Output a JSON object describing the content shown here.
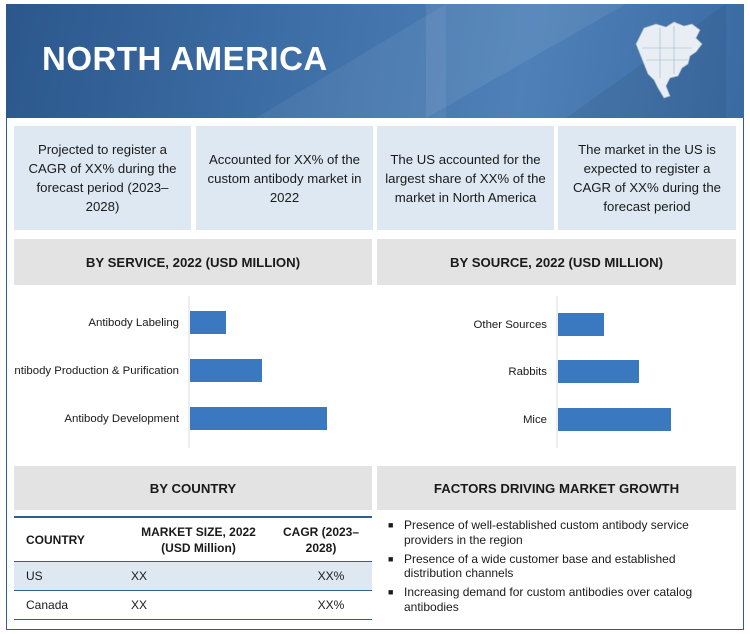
{
  "region": "NORTH AMERICA",
  "stats": [
    "Projected to register a CAGR of XX% during the forecast period (2023–2028)",
    "Accounted for XX% of the custom antibody market in 2022",
    "The US accounted for the largest share of XX% of the market in North America",
    "The market in the US is expected to register a CAGR of XX% during the forecast period"
  ],
  "sections": {
    "service": "BY SERVICE, 2022 (USD MILLION)",
    "source": "BY SOURCE, 2022 (USD MILLION)",
    "country": "BY COUNTRY",
    "factors": "FACTORS DRIVING MARKET GROWTH"
  },
  "chart_data": [
    {
      "type": "bar",
      "orientation": "horizontal",
      "title": "BY SERVICE, 2022 (USD MILLION)",
      "categories": [
        "Antibody Labeling",
        "Antibody Production & Purification",
        "Antibody Development"
      ],
      "values": [
        36,
        72,
        137
      ],
      "bar_color": "#3a78c0"
    },
    {
      "type": "bar",
      "orientation": "horizontal",
      "title": "BY SOURCE, 2022 (USD MILLION)",
      "categories": [
        "Other Sources",
        "Rabbits",
        "Mice"
      ],
      "values": [
        46,
        81,
        113
      ],
      "bar_color": "#3a78c0"
    }
  ],
  "country_table": {
    "headers": [
      "COUNTRY",
      "MARKET SIZE, 2022 (USD Million)",
      "CAGR (2023–2028)"
    ],
    "rows": [
      [
        "US",
        "XX",
        "XX%"
      ],
      [
        "Canada",
        "XX",
        "XX%"
      ]
    ]
  },
  "factors": [
    "Presence of well-established custom antibody service providers in the region",
    "Presence of a wide customer base and established distribution channels",
    "Increasing demand for custom antibodies over catalog antibodies"
  ],
  "colors": {
    "banner": "#2b578c",
    "accent": "#2e5f94",
    "stat_bg": "#dde8f2",
    "header_bg": "#e3e3e3",
    "bar": "#3a78c0"
  }
}
